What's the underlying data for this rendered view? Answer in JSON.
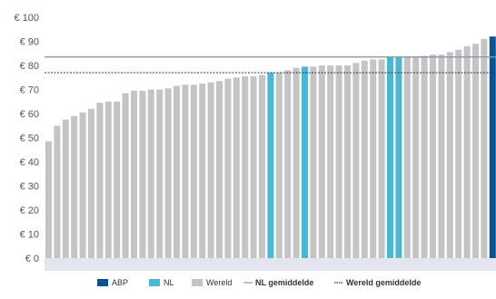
{
  "chart_data": {
    "type": "bar",
    "y_unit_prefix": "€ ",
    "ylim": [
      0,
      100
    ],
    "y_ticks": [
      0,
      10,
      20,
      30,
      40,
      50,
      60,
      70,
      80,
      90,
      100
    ],
    "grid": false,
    "values": [
      48.5,
      55,
      57.5,
      59,
      60.5,
      62,
      64.5,
      65,
      65,
      68.5,
      69.5,
      69.5,
      70,
      70,
      70.5,
      71.5,
      72,
      72,
      72.5,
      73,
      73.5,
      74.5,
      75,
      75.5,
      75.5,
      76,
      77,
      77,
      78,
      79,
      79.5,
      79.5,
      80,
      80,
      80,
      80,
      81,
      82,
      82.5,
      82.5,
      83.5,
      83.5,
      83.5,
      83.5,
      84,
      84.5,
      84.5,
      85.5,
      86.5,
      88,
      89,
      91,
      92,
      93
    ],
    "groups": [
      "w",
      "w",
      "w",
      "w",
      "w",
      "w",
      "w",
      "w",
      "w",
      "w",
      "w",
      "w",
      "w",
      "w",
      "w",
      "w",
      "w",
      "w",
      "w",
      "w",
      "w",
      "w",
      "w",
      "w",
      "w",
      "w",
      "nl",
      "w",
      "w",
      "w",
      "nl",
      "w",
      "w",
      "w",
      "w",
      "w",
      "w",
      "w",
      "w",
      "w",
      "nl",
      "nl",
      "w",
      "w",
      "w",
      "w",
      "w",
      "w",
      "w",
      "w",
      "w",
      "w",
      "abp",
      "w"
    ],
    "reference_lines": {
      "nl_average": 83.5,
      "world_average": 77
    },
    "legend": {
      "position": "bottom",
      "items": [
        {
          "key": "abp",
          "label": "ABP",
          "type": "box",
          "color": "#0a5296"
        },
        {
          "key": "nl",
          "label": "NL",
          "type": "box",
          "color": "#4ab8d2"
        },
        {
          "key": "world",
          "label": "Wereld",
          "type": "box",
          "color": "#c4c4c4"
        },
        {
          "key": "nl_avg",
          "label": "NL gemiddelde",
          "type": "solid-line",
          "color": "#8a97ad"
        },
        {
          "key": "world_avg",
          "label": "Wereld gemiddelde",
          "type": "dotted-line",
          "color": "#333333"
        }
      ]
    }
  },
  "colors": {
    "abp": "#0a5296",
    "nl": "#4ab8d2",
    "world": "#c4c4c4",
    "nl_avg_line": "#8a97ad",
    "world_avg_line": "#333333",
    "plot_background": "#ffffff",
    "baseline": "#e3e6ee"
  }
}
